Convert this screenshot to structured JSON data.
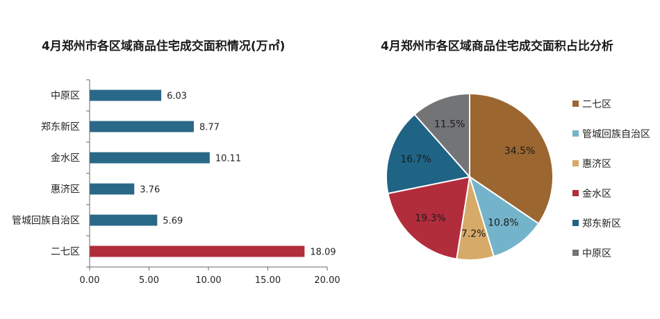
{
  "chart_data": [
    {
      "type": "bar",
      "orientation": "horizontal",
      "title": "4月郑州市各区域商品住宅成交面积情况(万㎡)",
      "categories": [
        "中原区",
        "郑东新区",
        "金水区",
        "惠济区",
        "管城回族自治区",
        "二七区"
      ],
      "values": [
        6.03,
        8.77,
        10.11,
        3.76,
        5.69,
        18.09
      ],
      "value_labels": [
        "6.03",
        "8.77",
        "10.11",
        "3.76",
        "5.69",
        "18.09"
      ],
      "bar_colors": [
        "#2a6888",
        "#2a6888",
        "#2a6888",
        "#2a6888",
        "#2a6888",
        "#b22d3c"
      ],
      "xlim": [
        0,
        20
      ],
      "xticks": [
        0,
        5,
        10,
        15,
        20
      ],
      "xtick_labels": [
        "0.00",
        "5.00",
        "10.00",
        "15.00",
        "20.00"
      ],
      "grid": false,
      "xlabel": "",
      "ylabel": ""
    },
    {
      "type": "pie",
      "title": "4月郑州市各区域商品住宅成交面积占比分析",
      "slices": [
        {
          "name": "二七区",
          "value": 34.5,
          "label": "34.5%",
          "color": "#9b6630"
        },
        {
          "name": "管城回族自治区",
          "value": 10.8,
          "label": "10.8%",
          "color": "#74b4ca"
        },
        {
          "name": "惠济区",
          "value": 7.2,
          "label": "7.2%",
          "color": "#d6aa69"
        },
        {
          "name": "金水区",
          "value": 19.3,
          "label": "19.3%",
          "color": "#b22d3c"
        },
        {
          "name": "郑东新区",
          "value": 16.7,
          "label": "16.7%",
          "color": "#1f6385"
        },
        {
          "name": "中原区",
          "value": 11.5,
          "label": "11.5%",
          "color": "#737476"
        }
      ],
      "legend_position": "right"
    }
  ]
}
